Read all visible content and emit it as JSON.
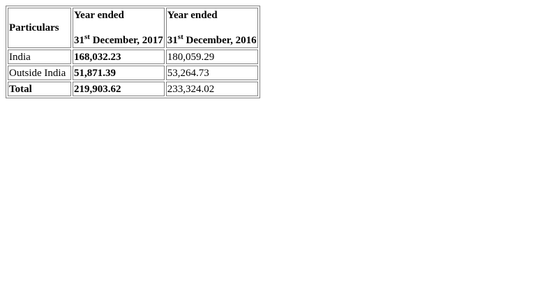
{
  "table": {
    "headers": {
      "particulars": "Particulars",
      "col2017": {
        "period": "Year ended",
        "day": "31",
        "suffix": "st",
        "rest": " December, 2017"
      },
      "col2016": {
        "period": "Year ended",
        "day": "31",
        "suffix": "st",
        "rest": " December, 2016"
      }
    },
    "rows": [
      {
        "label": "India",
        "v2017": "168,032.23",
        "v2016": "180,059.29"
      },
      {
        "label": "Outside India",
        "v2017": "51,871.39",
        "v2016": "53,264.73"
      },
      {
        "label": "Total",
        "v2017": "219,903.62",
        "v2016": "233,324.02"
      }
    ]
  }
}
